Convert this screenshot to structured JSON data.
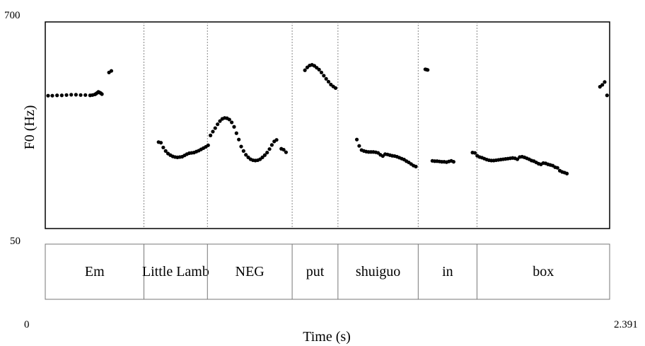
{
  "chart_data": {
    "type": "scatter",
    "xlabel": "Time (s)",
    "ylabel": "F0 (Hz)",
    "xlim": [
      0,
      2.391
    ],
    "ylim": [
      50,
      700
    ],
    "x_tick_labels": [
      "0",
      "2.391"
    ],
    "y_tick_labels": [
      "700",
      "50"
    ],
    "grid": false,
    "intervals": [
      {
        "label": "Em",
        "start": 0,
        "end": 0.418
      },
      {
        "label": "Little Lamb",
        "start": 0.418,
        "end": 0.687
      },
      {
        "label": "NEG",
        "start": 0.687,
        "end": 1.046
      },
      {
        "label": "put",
        "start": 1.046,
        "end": 1.24
      },
      {
        "label": "shuiguo",
        "start": 1.24,
        "end": 1.58
      },
      {
        "label": "in",
        "start": 1.58,
        "end": 1.829
      },
      {
        "label": "box",
        "start": 1.829,
        "end": 2.391
      }
    ],
    "pitch_points": [
      [
        0.012,
        468
      ],
      [
        0.03,
        468
      ],
      [
        0.05,
        469
      ],
      [
        0.07,
        469
      ],
      [
        0.09,
        470
      ],
      [
        0.11,
        471
      ],
      [
        0.13,
        471
      ],
      [
        0.15,
        470
      ],
      [
        0.17,
        470
      ],
      [
        0.19,
        469
      ],
      [
        0.2,
        470
      ],
      [
        0.21,
        472
      ],
      [
        0.215,
        474
      ],
      [
        0.22,
        477
      ],
      [
        0.225,
        480
      ],
      [
        0.23,
        478
      ],
      [
        0.235,
        476
      ],
      [
        0.24,
        473
      ],
      [
        0.27,
        541
      ],
      [
        0.28,
        546
      ],
      [
        0.48,
        322
      ],
      [
        0.49,
        320
      ],
      [
        0.5,
        305
      ],
      [
        0.51,
        294
      ],
      [
        0.52,
        286
      ],
      [
        0.53,
        281
      ],
      [
        0.54,
        277
      ],
      [
        0.55,
        275
      ],
      [
        0.56,
        274
      ],
      [
        0.57,
        275
      ],
      [
        0.58,
        276
      ],
      [
        0.59,
        280
      ],
      [
        0.6,
        284
      ],
      [
        0.61,
        287
      ],
      [
        0.62,
        288
      ],
      [
        0.63,
        289
      ],
      [
        0.64,
        292
      ],
      [
        0.65,
        295
      ],
      [
        0.66,
        299
      ],
      [
        0.67,
        303
      ],
      [
        0.68,
        307
      ],
      [
        0.69,
        312
      ],
      [
        0.7,
        343
      ],
      [
        0.71,
        355
      ],
      [
        0.72,
        366
      ],
      [
        0.73,
        378
      ],
      [
        0.74,
        388
      ],
      [
        0.75,
        395
      ],
      [
        0.76,
        398
      ],
      [
        0.77,
        397
      ],
      [
        0.78,
        393
      ],
      [
        0.79,
        384
      ],
      [
        0.8,
        370
      ],
      [
        0.81,
        350
      ],
      [
        0.82,
        330
      ],
      [
        0.83,
        308
      ],
      [
        0.84,
        294
      ],
      [
        0.85,
        282
      ],
      [
        0.86,
        274
      ],
      [
        0.87,
        268
      ],
      [
        0.88,
        265
      ],
      [
        0.89,
        264
      ],
      [
        0.9,
        265
      ],
      [
        0.91,
        268
      ],
      [
        0.92,
        274
      ],
      [
        0.93,
        281
      ],
      [
        0.94,
        289
      ],
      [
        0.95,
        300
      ],
      [
        0.96,
        313
      ],
      [
        0.97,
        324
      ],
      [
        0.98,
        329
      ],
      [
        1.0,
        301
      ],
      [
        1.01,
        298
      ],
      [
        1.02,
        290
      ],
      [
        1.1,
        548
      ],
      [
        1.11,
        557
      ],
      [
        1.12,
        563
      ],
      [
        1.13,
        565
      ],
      [
        1.14,
        562
      ],
      [
        1.15,
        556
      ],
      [
        1.16,
        550
      ],
      [
        1.17,
        541
      ],
      [
        1.18,
        531
      ],
      [
        1.19,
        521
      ],
      [
        1.2,
        512
      ],
      [
        1.21,
        503
      ],
      [
        1.22,
        497
      ],
      [
        1.23,
        492
      ],
      [
        1.32,
        330
      ],
      [
        1.33,
        310
      ],
      [
        1.34,
        297
      ],
      [
        1.35,
        294
      ],
      [
        1.36,
        292
      ],
      [
        1.37,
        291
      ],
      [
        1.38,
        291
      ],
      [
        1.39,
        291
      ],
      [
        1.4,
        290
      ],
      [
        1.41,
        288
      ],
      [
        1.42,
        282
      ],
      [
        1.43,
        278
      ],
      [
        1.44,
        284
      ],
      [
        1.45,
        283
      ],
      [
        1.46,
        281
      ],
      [
        1.47,
        279
      ],
      [
        1.48,
        278
      ],
      [
        1.49,
        276
      ],
      [
        1.5,
        273
      ],
      [
        1.51,
        270
      ],
      [
        1.52,
        267
      ],
      [
        1.53,
        262
      ],
      [
        1.54,
        258
      ],
      [
        1.55,
        253
      ],
      [
        1.56,
        248
      ],
      [
        1.57,
        245
      ],
      [
        1.61,
        551
      ],
      [
        1.62,
        549
      ],
      [
        1.615,
        550
      ],
      [
        1.64,
        263
      ],
      [
        1.65,
        262
      ],
      [
        1.66,
        262
      ],
      [
        1.67,
        261
      ],
      [
        1.68,
        260
      ],
      [
        1.69,
        260
      ],
      [
        1.7,
        259
      ],
      [
        1.71,
        261
      ],
      [
        1.72,
        263
      ],
      [
        1.73,
        260
      ],
      [
        1.81,
        289
      ],
      [
        1.82,
        288
      ],
      [
        1.83,
        279
      ],
      [
        1.84,
        275
      ],
      [
        1.85,
        273
      ],
      [
        1.86,
        270
      ],
      [
        1.87,
        267
      ],
      [
        1.88,
        265
      ],
      [
        1.89,
        264
      ],
      [
        1.9,
        264
      ],
      [
        1.91,
        265
      ],
      [
        1.92,
        266
      ],
      [
        1.93,
        267
      ],
      [
        1.94,
        268
      ],
      [
        1.95,
        269
      ],
      [
        1.96,
        270
      ],
      [
        1.97,
        271
      ],
      [
        1.98,
        272
      ],
      [
        1.99,
        271
      ],
      [
        2.0,
        268
      ],
      [
        2.01,
        275
      ],
      [
        2.02,
        276
      ],
      [
        2.03,
        274
      ],
      [
        2.04,
        271
      ],
      [
        2.05,
        268
      ],
      [
        2.06,
        264
      ],
      [
        2.07,
        262
      ],
      [
        2.08,
        258
      ],
      [
        2.09,
        254
      ],
      [
        2.1,
        252
      ],
      [
        2.11,
        256
      ],
      [
        2.12,
        255
      ],
      [
        2.13,
        252
      ],
      [
        2.14,
        250
      ],
      [
        2.15,
        248
      ],
      [
        2.16,
        243
      ],
      [
        2.17,
        241
      ],
      [
        2.18,
        232
      ],
      [
        2.19,
        228
      ],
      [
        2.2,
        226
      ],
      [
        2.21,
        223
      ],
      [
        2.35,
        496
      ],
      [
        2.36,
        502
      ],
      [
        2.37,
        511
      ],
      [
        2.38,
        469
      ]
    ]
  }
}
